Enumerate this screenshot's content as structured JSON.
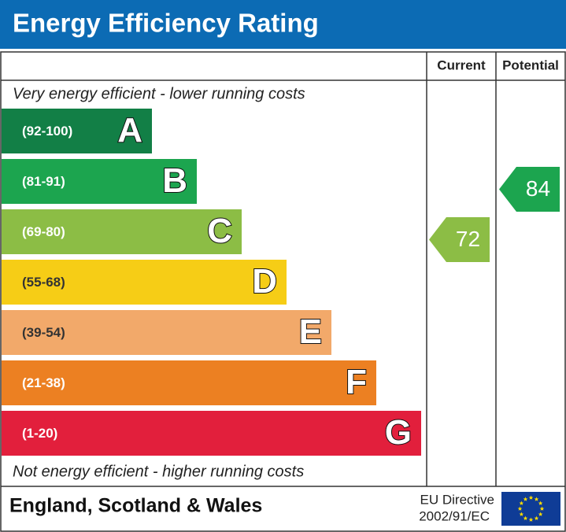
{
  "title": "Energy Efficiency Rating",
  "columns": [
    "Current",
    "Potential"
  ],
  "top_note": "Very energy efficient - lower running costs",
  "bottom_note": "Not energy efficient - higher running costs",
  "bands": [
    {
      "range": "(92-100)",
      "letter": "A",
      "color": "#127f46"
    },
    {
      "range": "(81-91)",
      "letter": "B",
      "color": "#1ca54f"
    },
    {
      "range": "(69-80)",
      "letter": "C",
      "color": "#8cbd45"
    },
    {
      "range": "(55-68)",
      "letter": "D",
      "color": "#f6cd16"
    },
    {
      "range": "(39-54)",
      "letter": "E",
      "color": "#f2a96a"
    },
    {
      "range": "(21-38)",
      "letter": "F",
      "color": "#ec8022"
    },
    {
      "range": "(1-20)",
      "letter": "G",
      "color": "#e21f3c"
    }
  ],
  "current": 72,
  "potential": 84,
  "footer": {
    "region": "England, Scotland & Wales",
    "directive": [
      "EU Directive",
      "2002/91/EC"
    ]
  }
}
